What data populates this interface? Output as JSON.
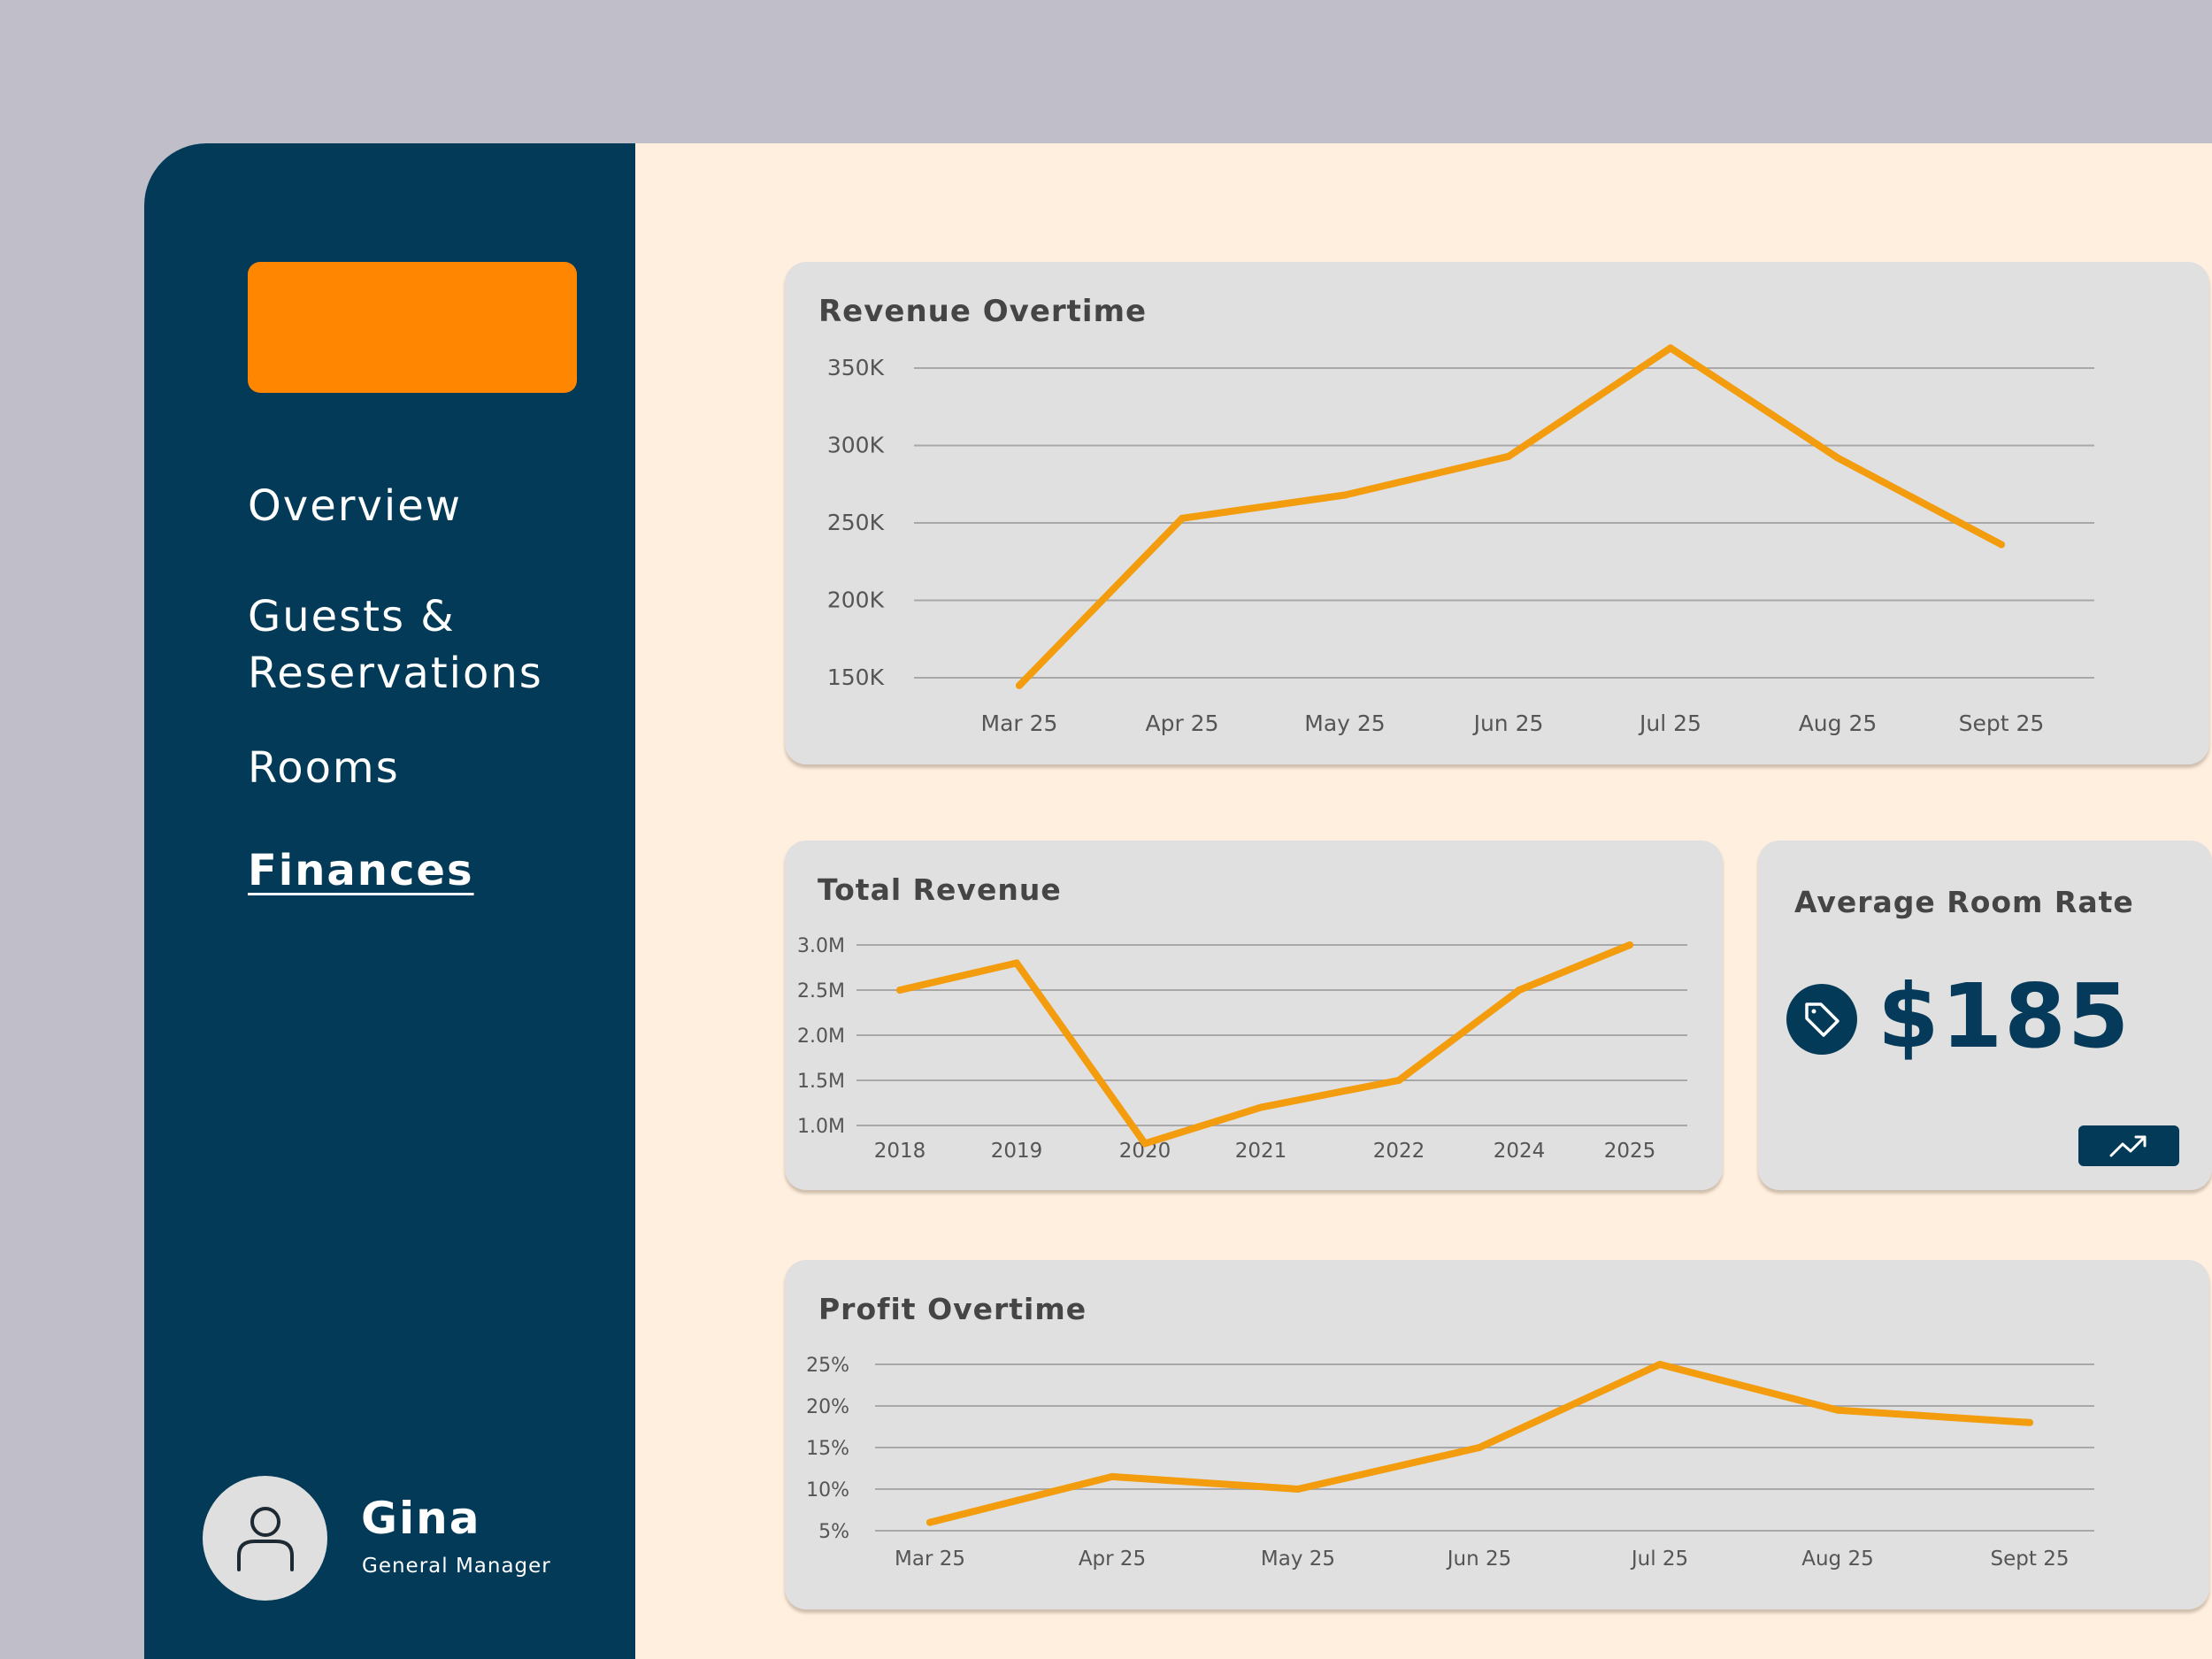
{
  "sidebar": {
    "nav": [
      {
        "label": "Overview",
        "active": false
      },
      {
        "label": "Guests &\nReservations",
        "active": false
      },
      {
        "label": "Rooms",
        "active": false
      },
      {
        "label": "Finances",
        "active": true
      }
    ],
    "user": {
      "name": "Gina",
      "role": "General Manager",
      "avatar_icon": "user-icon"
    }
  },
  "colors": {
    "sidebar": "#023a57",
    "accent": "#ff8601",
    "line": "#f29c0e",
    "background": "#ffefdf",
    "card": "#e0e0e0"
  },
  "cards": {
    "revenue_title": "Revenue Overtime",
    "total_title": "Total Revenue",
    "rate_title": "Average Room Rate",
    "rate_value": "$185",
    "rate_icon": "price-tag-icon",
    "trend_icon": "trending-up-icon",
    "profit_title": "Profit Overtime"
  },
  "chart_data": [
    {
      "id": "revenue",
      "type": "line",
      "title": "Revenue Overtime",
      "categories": [
        "Mar 25",
        "Apr 25",
        "May 25",
        "Jun 25",
        "Jul 25",
        "Aug 25",
        "Sept 25"
      ],
      "values": [
        145000,
        253000,
        268000,
        293000,
        363000,
        292000,
        236000
      ],
      "yticks": [
        "350K",
        "300K",
        "250K",
        "200K",
        "150K"
      ],
      "ytick_values": [
        350000,
        300000,
        250000,
        200000,
        150000
      ],
      "ylim": [
        150000,
        350000
      ],
      "grid": true,
      "legend": "none"
    },
    {
      "id": "total",
      "type": "line",
      "title": "Total Revenue",
      "categories": [
        "2018",
        "2019",
        "2020",
        "2021",
        "2022",
        "2024",
        "2025"
      ],
      "values": [
        2.5,
        2.8,
        0.8,
        1.2,
        1.5,
        2.5,
        3.0
      ],
      "yticks": [
        "3.0M",
        "2.5M",
        "2.0M",
        "1.5M",
        "1.0M"
      ],
      "ytick_values": [
        3.0,
        2.5,
        2.0,
        1.5,
        1.0
      ],
      "ylim": [
        1.0,
        3.0
      ],
      "grid": true,
      "legend": "none"
    },
    {
      "id": "profit",
      "type": "line",
      "title": "Profit Overtime",
      "categories": [
        "Mar 25",
        "Apr 25",
        "May 25",
        "Jun 25",
        "Jul 25",
        "Aug 25",
        "Sept 25"
      ],
      "values": [
        6,
        11.5,
        10,
        15,
        25,
        19.5,
        18
      ],
      "yticks": [
        "25%",
        "20%",
        "15%",
        "10%",
        "5%"
      ],
      "ytick_values": [
        25,
        20,
        15,
        10,
        5
      ],
      "ylim": [
        5,
        25
      ],
      "grid": true,
      "legend": "none"
    }
  ]
}
